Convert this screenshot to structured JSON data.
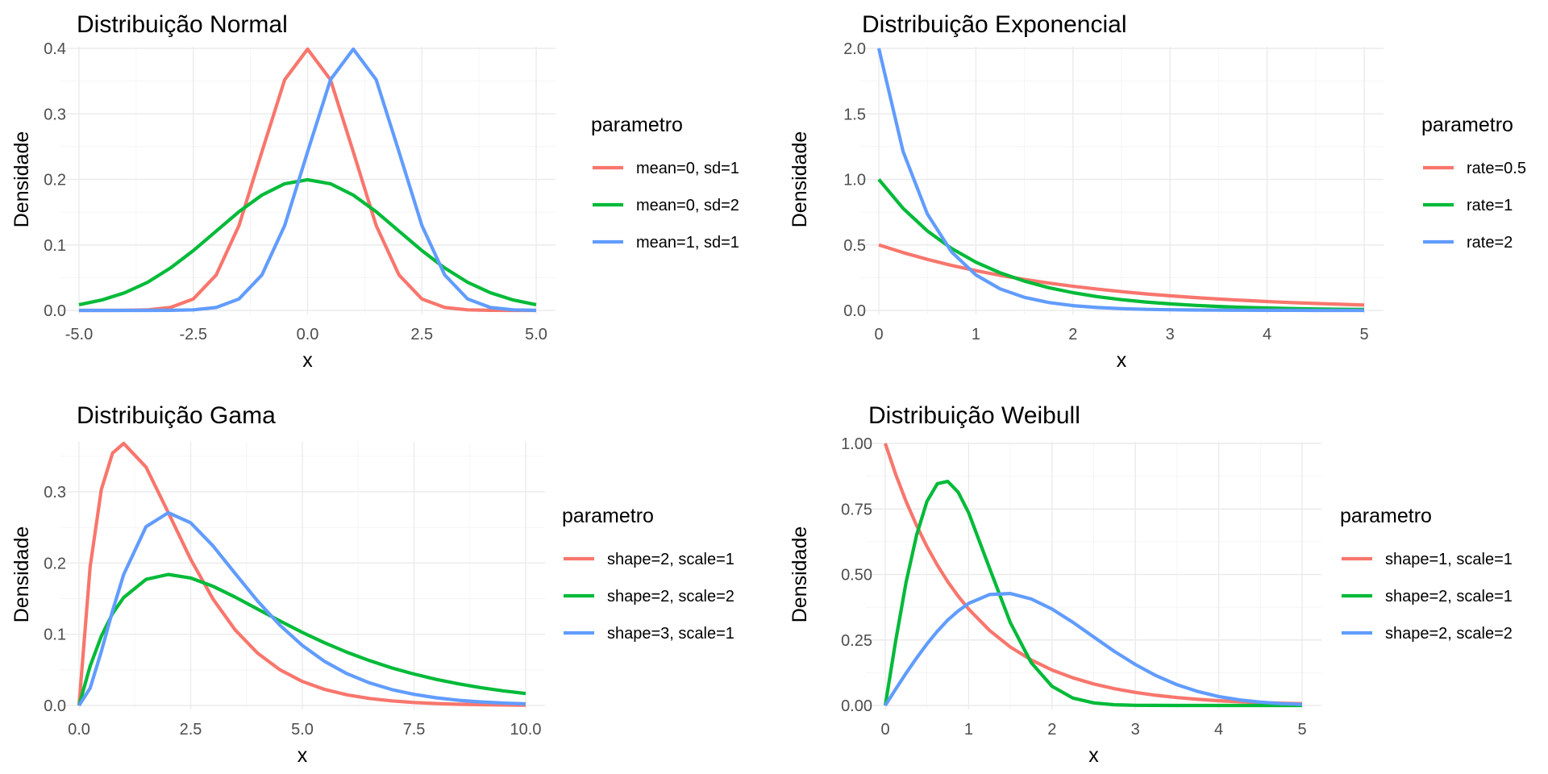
{
  "chart_data": [
    {
      "type": "line",
      "title": "Distribuição Normal",
      "xlabel": "x",
      "ylabel": "Densidade",
      "xlim": [
        -5,
        5
      ],
      "ylim": [
        0,
        0.4
      ],
      "x_ticks": [
        -5,
        -2.5,
        0,
        2.5,
        5
      ],
      "x_tick_labels": [
        "-5.0",
        "-2.5",
        "0.0",
        "2.5",
        "5.0"
      ],
      "y_ticks": [
        0,
        0.1,
        0.2,
        0.3,
        0.4
      ],
      "y_tick_labels": [
        "0.0",
        "0.1",
        "0.2",
        "0.3",
        "0.4"
      ],
      "grid": true,
      "legend_title": "parametro",
      "legend_position": "right",
      "series": [
        {
          "name": "mean=0, sd=1",
          "color": "#F8766D",
          "x": [
            -5,
            -4.5,
            -4,
            -3.5,
            -3,
            -2.5,
            -2,
            -1.5,
            -1,
            -0.5,
            0,
            0.5,
            1,
            1.5,
            2,
            2.5,
            3,
            3.5,
            4,
            4.5,
            5
          ],
          "y": [
            0,
            0,
            0.0001,
            0.0009,
            0.0044,
            0.0175,
            0.054,
            0.1295,
            0.242,
            0.3521,
            0.3989,
            0.3521,
            0.242,
            0.1295,
            0.054,
            0.0175,
            0.0044,
            0.0009,
            0.0001,
            0,
            0
          ]
        },
        {
          "name": "mean=0, sd=2",
          "color": "#00BA38",
          "x": [
            -5,
            -4.5,
            -4,
            -3.5,
            -3,
            -2.5,
            -2,
            -1.5,
            -1,
            -0.5,
            0,
            0.5,
            1,
            1.5,
            2,
            2.5,
            3,
            3.5,
            4,
            4.5,
            5
          ],
          "y": [
            0.0088,
            0.0159,
            0.027,
            0.043,
            0.0648,
            0.0913,
            0.121,
            0.1506,
            0.176,
            0.1933,
            0.1995,
            0.1933,
            0.176,
            0.1506,
            0.121,
            0.0913,
            0.0648,
            0.043,
            0.027,
            0.0159,
            0.0088
          ]
        },
        {
          "name": "mean=1, sd=1",
          "color": "#619CFF",
          "x": [
            -5,
            -4.5,
            -4,
            -3.5,
            -3,
            -2.5,
            -2,
            -1.5,
            -1,
            -0.5,
            0,
            0.5,
            1,
            1.5,
            2,
            2.5,
            3,
            3.5,
            4,
            4.5,
            5
          ],
          "y": [
            0,
            0,
            0,
            0,
            0.0001,
            0.0009,
            0.0044,
            0.0175,
            0.054,
            0.1295,
            0.242,
            0.3521,
            0.3989,
            0.3521,
            0.242,
            0.1295,
            0.054,
            0.0175,
            0.0044,
            0.0009,
            0.0001
          ]
        }
      ]
    },
    {
      "type": "line",
      "title": "Distribuição Exponencial",
      "xlabel": "x",
      "ylabel": "Densidade",
      "xlim": [
        0,
        5
      ],
      "ylim": [
        0,
        2
      ],
      "x_ticks": [
        0,
        1,
        2,
        3,
        4,
        5
      ],
      "x_tick_labels": [
        "0",
        "1",
        "2",
        "3",
        "4",
        "5"
      ],
      "y_ticks": [
        0,
        0.5,
        1,
        1.5,
        2
      ],
      "y_tick_labels": [
        "0.0",
        "0.5",
        "1.0",
        "1.5",
        "2.0"
      ],
      "grid": true,
      "legend_title": "parametro",
      "legend_position": "right",
      "series": [
        {
          "name": "rate=0.5",
          "color": "#F8766D",
          "x": [
            0,
            0.25,
            0.5,
            0.75,
            1,
            1.25,
            1.5,
            1.75,
            2,
            2.25,
            2.5,
            2.75,
            3,
            3.25,
            3.5,
            3.75,
            4,
            4.25,
            4.5,
            4.75,
            5
          ],
          "y": [
            0.5,
            0.4412,
            0.3894,
            0.3436,
            0.3033,
            0.2676,
            0.2362,
            0.2084,
            0.1839,
            0.1623,
            0.1433,
            0.1264,
            0.1116,
            0.0985,
            0.0869,
            0.0767,
            0.0677,
            0.0597,
            0.0527,
            0.0465,
            0.041
          ]
        },
        {
          "name": "rate=1",
          "color": "#00BA38",
          "x": [
            0,
            0.25,
            0.5,
            0.75,
            1,
            1.25,
            1.5,
            1.75,
            2,
            2.25,
            2.5,
            2.75,
            3,
            3.25,
            3.5,
            3.75,
            4,
            4.25,
            4.5,
            4.75,
            5
          ],
          "y": [
            1,
            0.7788,
            0.6065,
            0.4724,
            0.3679,
            0.2865,
            0.2231,
            0.1738,
            0.1353,
            0.1054,
            0.0821,
            0.0639,
            0.0498,
            0.0388,
            0.0302,
            0.0235,
            0.0183,
            0.0143,
            0.0111,
            0.0087,
            0.0067
          ]
        },
        {
          "name": "rate=2",
          "color": "#619CFF",
          "x": [
            0,
            0.25,
            0.5,
            0.75,
            1,
            1.25,
            1.5,
            1.75,
            2,
            2.25,
            2.5,
            2.75,
            3,
            3.25,
            3.5,
            3.75,
            4,
            4.25,
            4.5,
            4.75,
            5
          ],
          "y": [
            2,
            1.2131,
            0.7358,
            0.4463,
            0.2707,
            0.1642,
            0.0996,
            0.0604,
            0.0366,
            0.0222,
            0.0135,
            0.0082,
            0.005,
            0.003,
            0.0018,
            0.0011,
            0.0007,
            0.0004,
            0.0002,
            0.0001,
            0.0001
          ]
        }
      ]
    },
    {
      "type": "line",
      "title": "Distribuição Gama",
      "xlabel": "x",
      "ylabel": "Densidade",
      "xlim": [
        0,
        10
      ],
      "ylim": [
        0,
        0.3679
      ],
      "x_ticks": [
        0,
        2.5,
        5,
        7.5,
        10
      ],
      "x_tick_labels": [
        "0.0",
        "2.5",
        "5.0",
        "7.5",
        "10.0"
      ],
      "y_ticks": [
        0,
        0.1,
        0.2,
        0.3
      ],
      "y_tick_labels": [
        "0.0",
        "0.1",
        "0.2",
        "0.3"
      ],
      "grid": true,
      "legend_title": "parametro",
      "legend_position": "right",
      "series": [
        {
          "name": "shape=2, scale=1",
          "color": "#F8766D",
          "x": [
            0,
            0.25,
            0.5,
            0.75,
            1,
            1.5,
            2,
            2.5,
            3,
            3.5,
            4,
            4.5,
            5,
            5.5,
            6,
            6.5,
            7,
            7.5,
            8,
            8.5,
            9,
            9.5,
            10
          ],
          "y": [
            0,
            0.1947,
            0.3033,
            0.3543,
            0.3679,
            0.3347,
            0.2707,
            0.2052,
            0.1494,
            0.1057,
            0.0733,
            0.05,
            0.0337,
            0.0225,
            0.0149,
            0.0098,
            0.0064,
            0.0042,
            0.0027,
            0.0017,
            0.0011,
            0.0007,
            0.0005
          ]
        },
        {
          "name": "shape=2, scale=2",
          "color": "#00BA38",
          "x": [
            0,
            0.25,
            0.5,
            0.75,
            1,
            1.5,
            2,
            2.5,
            3,
            3.5,
            4,
            4.5,
            5,
            5.5,
            6,
            6.5,
            7,
            7.5,
            8,
            8.5,
            9,
            9.5,
            10
          ],
          "y": [
            0,
            0.0552,
            0.0974,
            0.1291,
            0.1516,
            0.1771,
            0.1839,
            0.179,
            0.1673,
            0.152,
            0.1353,
            0.1186,
            0.1026,
            0.0879,
            0.0747,
            0.063,
            0.0528,
            0.0441,
            0.0366,
            0.0303,
            0.025,
            0.0205,
            0.0168
          ]
        },
        {
          "name": "shape=3, scale=1",
          "color": "#619CFF",
          "x": [
            0,
            0.25,
            0.5,
            0.75,
            1,
            1.5,
            2,
            2.5,
            3,
            3.5,
            4,
            4.5,
            5,
            5.5,
            6,
            6.5,
            7,
            7.5,
            8,
            8.5,
            9,
            9.5,
            10
          ],
          "y": [
            0,
            0.0243,
            0.0758,
            0.1329,
            0.1839,
            0.251,
            0.2707,
            0.2565,
            0.224,
            0.185,
            0.1465,
            0.1125,
            0.0842,
            0.0618,
            0.0446,
            0.0318,
            0.0223,
            0.0156,
            0.0107,
            0.0073,
            0.005,
            0.0034,
            0.0023
          ]
        }
      ]
    },
    {
      "type": "line",
      "title": "Distribuição Weibull",
      "xlabel": "x",
      "ylabel": "Densidade",
      "xlim": [
        0,
        5
      ],
      "ylim": [
        0,
        1
      ],
      "x_ticks": [
        0,
        1,
        2,
        3,
        4,
        5
      ],
      "x_tick_labels": [
        "0",
        "1",
        "2",
        "3",
        "4",
        "5"
      ],
      "y_ticks": [
        0,
        0.25,
        0.5,
        0.75,
        1
      ],
      "y_tick_labels": [
        "0.00",
        "0.25",
        "0.50",
        "0.75",
        "1.00"
      ],
      "grid": true,
      "legend_title": "parametro",
      "legend_position": "right",
      "series": [
        {
          "name": "shape=1, scale=1",
          "color": "#F8766D",
          "x": [
            0,
            0.125,
            0.25,
            0.375,
            0.5,
            0.625,
            0.75,
            0.875,
            1,
            1.25,
            1.5,
            1.75,
            2,
            2.25,
            2.5,
            2.75,
            3,
            3.25,
            3.5,
            3.75,
            4,
            4.25,
            4.5,
            4.75,
            5
          ],
          "y": [
            1,
            0.8825,
            0.7788,
            0.6873,
            0.6065,
            0.5353,
            0.4724,
            0.4169,
            0.3679,
            0.2865,
            0.2231,
            0.1738,
            0.1353,
            0.1054,
            0.0821,
            0.0639,
            0.0498,
            0.0388,
            0.0302,
            0.0235,
            0.0183,
            0.0143,
            0.0111,
            0.0087,
            0.0067
          ]
        },
        {
          "name": "shape=2, scale=1",
          "color": "#00BA38",
          "x": [
            0,
            0.125,
            0.25,
            0.375,
            0.5,
            0.625,
            0.75,
            0.875,
            1,
            1.25,
            1.5,
            1.75,
            2,
            2.25,
            2.5,
            2.75,
            3,
            3.25,
            3.5,
            3.75,
            4,
            4.25,
            4.5,
            4.75,
            5
          ],
          "y": [
            0,
            0.2461,
            0.4697,
            0.6495,
            0.7788,
            0.8466,
            0.855,
            0.8136,
            0.7358,
            0.5243,
            0.3162,
            0.1633,
            0.0733,
            0.0284,
            0.0097,
            0.0029,
            0.0007,
            0.0002,
            0,
            0,
            0,
            0,
            0,
            0,
            0
          ]
        },
        {
          "name": "shape=2, scale=2",
          "color": "#619CFF",
          "x": [
            0,
            0.125,
            0.25,
            0.375,
            0.5,
            0.625,
            0.75,
            0.875,
            1,
            1.25,
            1.5,
            1.75,
            2,
            2.25,
            2.5,
            2.75,
            3,
            3.25,
            3.5,
            3.75,
            4,
            4.25,
            4.5,
            4.75,
            5
          ],
          "y": [
            0,
            0.0622,
            0.123,
            0.1809,
            0.2348,
            0.2834,
            0.3257,
            0.3608,
            0.3894,
            0.4233,
            0.4273,
            0.4066,
            0.3679,
            0.3174,
            0.2615,
            0.2063,
            0.1562,
            0.1134,
            0.0791,
            0.0531,
            0.0342,
            0.0211,
            0.0125,
            0.0071,
            0.0039
          ]
        }
      ]
    }
  ]
}
